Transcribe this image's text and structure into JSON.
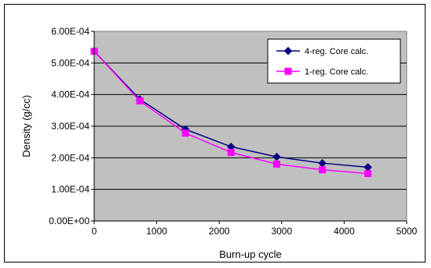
{
  "chart_data": {
    "type": "line",
    "title": "",
    "xlabel": "Burn-up cycle",
    "ylabel": "Density (g/cc)",
    "xlim": [
      0,
      5000
    ],
    "ylim": [
      0,
      0.0006
    ],
    "x_ticks": [
      "0",
      "1000",
      "2000",
      "3000",
      "4000",
      "5000"
    ],
    "y_ticks": [
      "0.00E+00",
      "1.00E-04",
      "2.00E-04",
      "3.00E-04",
      "4.00E-04",
      "5.00E-04",
      "6.00E-04"
    ],
    "grid": "horizontal",
    "legend_position": "top-right",
    "plot_background": "#c0c0c0",
    "series": [
      {
        "name": "4-reg. Core calc.",
        "color": "#000080",
        "marker": "diamond",
        "x": [
          0,
          730,
          1460,
          2190,
          2920,
          3650,
          4380
        ],
        "y": [
          0.000537,
          0.000385,
          0.00029,
          0.000235,
          0.000203,
          0.000183,
          0.00017
        ]
      },
      {
        "name": "1-reg. Core calc.",
        "color": "#ff00ff",
        "marker": "square",
        "x": [
          0,
          730,
          1460,
          2190,
          2920,
          3650,
          4380
        ],
        "y": [
          0.000537,
          0.00038,
          0.000278,
          0.000217,
          0.00018,
          0.000162,
          0.00015
        ]
      }
    ]
  }
}
